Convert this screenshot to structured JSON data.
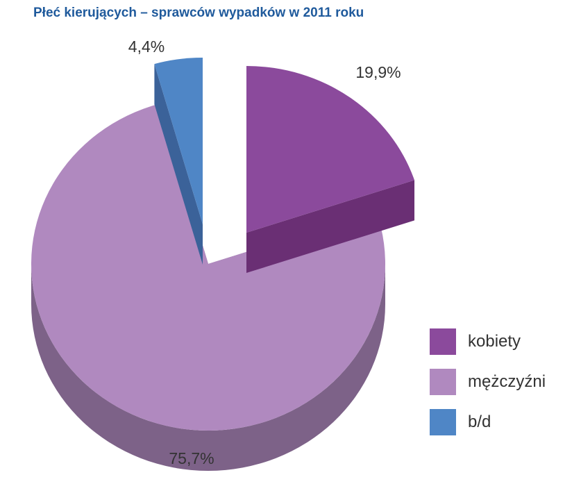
{
  "chart_data": {
    "type": "pie",
    "title": "Płeć kierujących – sprawców wypadków w 2011 roku",
    "categories": [
      "kobiety",
      "mężczyźni",
      "b/d"
    ],
    "values": [
      19.9,
      75.7,
      4.4
    ],
    "value_labels": [
      "19,9%",
      "75,7%",
      "4,4%"
    ],
    "colors": [
      "#8b4a9c",
      "#b089bf",
      "#4f86c6"
    ],
    "side_colors": [
      "#6a2f74",
      "#7d6288",
      "#3b6299"
    ],
    "legend_position": "right",
    "three_d": true,
    "exploded": true
  }
}
